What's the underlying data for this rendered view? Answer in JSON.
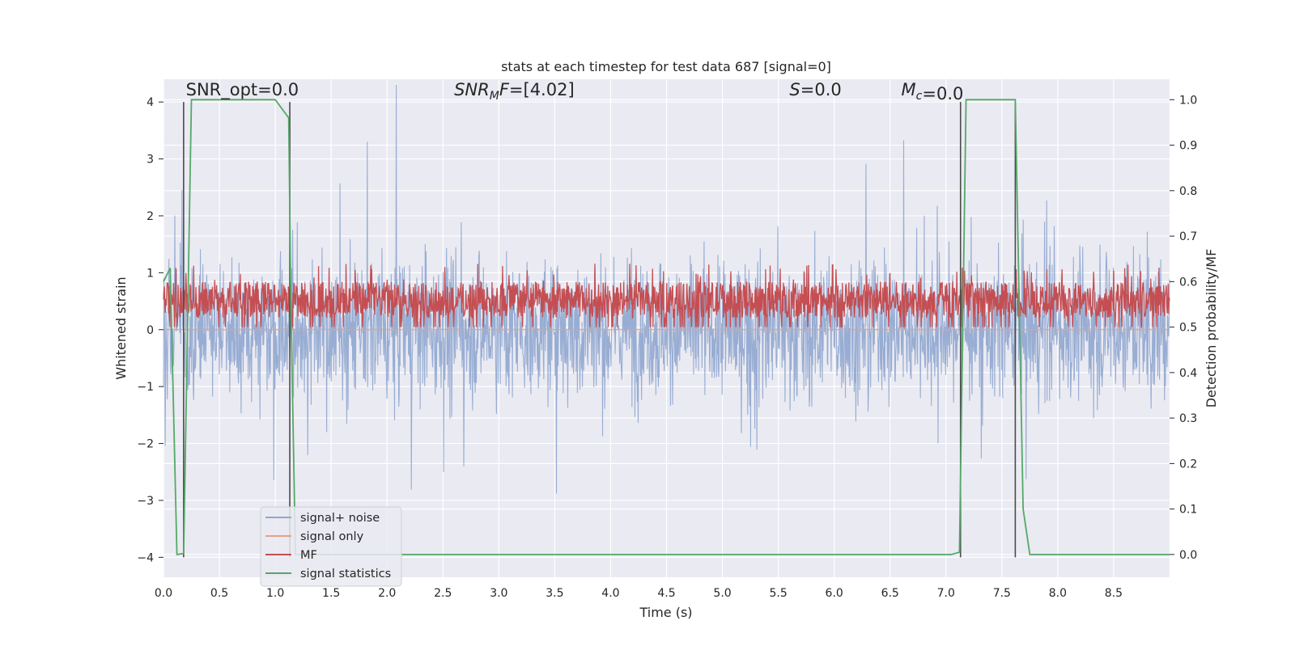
{
  "chart_data": {
    "type": "line",
    "title": "stats at each timestep for test data 687 [signal=0]",
    "xlabel": "Time (s)",
    "ylabel_left": "Whitened strain",
    "ylabel_right": "Detection probability/MF",
    "xlim": [
      0.0,
      9.0
    ],
    "ylim_left": [
      -4.35,
      4.4
    ],
    "ylim_right": [
      -0.05,
      1.045
    ],
    "x_ticks": [
      "0.0",
      "0.5",
      "1.0",
      "1.5",
      "2.0",
      "2.5",
      "3.0",
      "3.5",
      "4.0",
      "4.5",
      "5.0",
      "5.5",
      "6.0",
      "6.5",
      "7.0",
      "7.5",
      "8.0",
      "8.5"
    ],
    "y_ticks_left": [
      "−4",
      "−3",
      "−2",
      "−1",
      "0",
      "1",
      "2",
      "3",
      "4"
    ],
    "y_ticks_right": [
      "0.0",
      "0.1",
      "0.2",
      "0.3",
      "0.4",
      "0.5",
      "0.6",
      "0.7",
      "0.8",
      "0.9",
      "1.0"
    ],
    "grid": true,
    "legend_position": "lower-left",
    "annotations": [
      {
        "text": "SNR_opt=0.0",
        "x": 0.2,
        "y": 4.1
      },
      {
        "text": "=[4.02]",
        "math": "SNR",
        "sub": "M",
        "math2": "F",
        "x": 2.6,
        "y": 4.1
      },
      {
        "text": "=0.0",
        "math": "S",
        "x": 5.6,
        "y": 4.1
      },
      {
        "text": "=0.0",
        "math": "M",
        "sub": "c",
        "x": 6.6,
        "y": 4.1
      }
    ],
    "vertical_lines": [
      0.18,
      1.13,
      7.13,
      7.62
    ],
    "series": [
      {
        "name": "signal+ noise",
        "color": "#8fa6cf",
        "description_level": "noise band approx ±1.6 envelope with spikes to ±4"
      },
      {
        "name": "signal only",
        "color": "#e8a17f",
        "values_constant": 0.0
      },
      {
        "name": "MF",
        "color": "#c44e52",
        "axis": "right",
        "band": [
          0.5,
          0.6
        ]
      },
      {
        "name": "signal statistics",
        "color": "#55a868",
        "axis": "right",
        "x": [
          0.0,
          0.06,
          0.12,
          0.18,
          0.25,
          1.0,
          1.12,
          1.14,
          1.18,
          1.25,
          7.05,
          7.12,
          7.18,
          7.62,
          7.69,
          7.75,
          9.0
        ],
        "y": [
          0.6,
          0.63,
          0.0,
          0.002,
          1.0,
          1.0,
          0.96,
          0.55,
          0.0,
          0.0,
          0.0,
          0.005,
          1.0,
          1.0,
          0.1,
          0.0,
          0.0
        ]
      }
    ]
  }
}
